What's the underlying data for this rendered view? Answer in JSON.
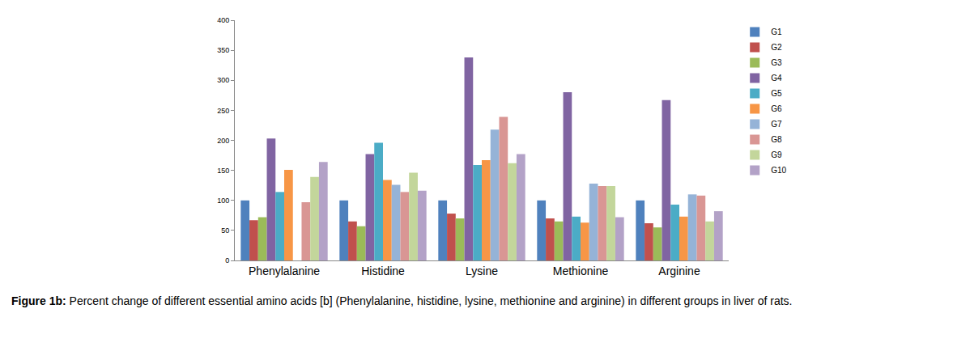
{
  "chart_data": {
    "type": "bar",
    "categories": [
      "Phenylalanine",
      "Histidine",
      "Lysine",
      "Methionine",
      "Arginine"
    ],
    "series": [
      {
        "name": "G1",
        "color": "#4f81bd",
        "values": [
          100,
          100,
          100,
          100,
          100
        ]
      },
      {
        "name": "G2",
        "color": "#c0504d",
        "values": [
          67,
          65,
          78,
          70,
          62
        ]
      },
      {
        "name": "G3",
        "color": "#9bbb59",
        "values": [
          72,
          57,
          70,
          65,
          55
        ]
      },
      {
        "name": "G4",
        "color": "#8064a2",
        "values": [
          203,
          177,
          338,
          280,
          267
        ]
      },
      {
        "name": "G5",
        "color": "#4bacc6",
        "values": [
          114,
          196,
          159,
          73,
          93
        ]
      },
      {
        "name": "G6",
        "color": "#f79646",
        "values": [
          151,
          134,
          167,
          63,
          73
        ]
      },
      {
        "name": "G7",
        "color": "#95b3d7",
        "values": [
          null,
          126,
          218,
          128,
          110
        ]
      },
      {
        "name": "G8",
        "color": "#d99694",
        "values": [
          97,
          114,
          239,
          124,
          108
        ]
      },
      {
        "name": "G9",
        "color": "#c3d69b",
        "values": [
          139,
          146,
          162,
          124,
          65
        ]
      },
      {
        "name": "G10",
        "color": "#b3a2c7",
        "values": [
          164,
          116,
          177,
          72,
          82
        ]
      }
    ],
    "ylim": [
      0,
      400
    ],
    "yticks": [
      0,
      50,
      100,
      150,
      200,
      250,
      300,
      350,
      400
    ],
    "grid": false,
    "legend": "right",
    "caption": {
      "label": "Figure 1b:",
      "text": "Percent change of different essential amino acids [b] (Phenylalanine, histidine, lysine, methionine and arginine) in different groups in liver of rats."
    }
  }
}
